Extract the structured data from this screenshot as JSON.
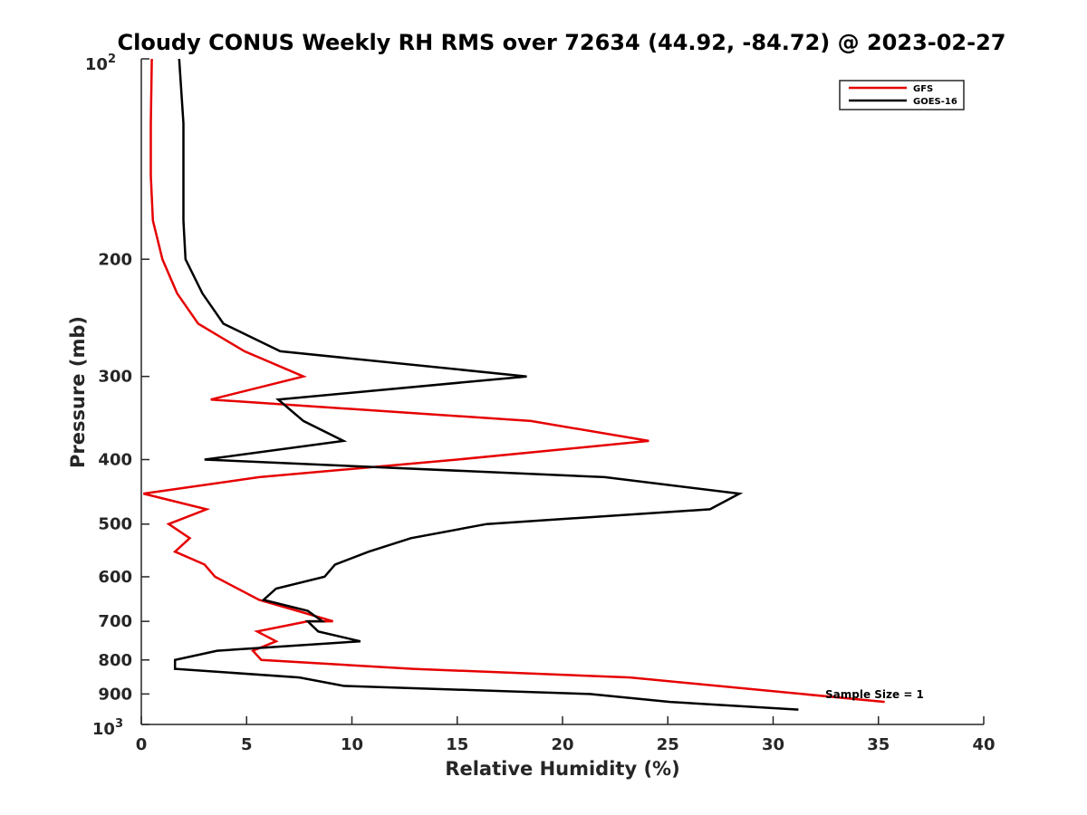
{
  "chart_data": {
    "type": "line",
    "title": "Cloudy CONUS Weekly RH RMS over 72634 (44.92, -84.72) @ 2023-02-27",
    "xlabel": "Relative Humidity (%)",
    "ylabel": "Pressure (mb)",
    "xlim": [
      0,
      40
    ],
    "ylim": [
      100,
      1000
    ],
    "y_scale": "log",
    "y_reversed": true,
    "x_ticks": [
      0,
      5,
      10,
      15,
      20,
      25,
      30,
      35,
      40
    ],
    "x_tick_labels": [
      "0",
      "5",
      "10",
      "15",
      "20",
      "25",
      "30",
      "35",
      "40"
    ],
    "y_ticks": [
      200,
      300,
      400,
      500,
      600,
      700,
      800,
      900
    ],
    "y_tick_labels": [
      "200",
      "300",
      "400",
      "500",
      "600",
      "700",
      "800",
      "900"
    ],
    "y_top_label": {
      "base": "10",
      "exponent": "2"
    },
    "y_bottom_label": {
      "base": "10",
      "exponent": "3"
    },
    "grid": false,
    "legend_position": "top-right",
    "annotation": "Sample Size = 1",
    "series": [
      {
        "name": "GFS",
        "color": "#e60000",
        "points": [
          [
            0.5,
            100
          ],
          [
            0.45,
            125
          ],
          [
            0.45,
            150
          ],
          [
            0.55,
            175
          ],
          [
            1.0,
            200
          ],
          [
            1.7,
            225
          ],
          [
            2.7,
            250
          ],
          [
            4.9,
            275
          ],
          [
            7.7,
            300
          ],
          [
            3.3,
            325
          ],
          [
            18.5,
            350
          ],
          [
            24.1,
            375
          ],
          [
            15.0,
            400
          ],
          [
            5.6,
            425
          ],
          [
            0.1,
            450
          ],
          [
            3.1,
            475
          ],
          [
            1.3,
            500
          ],
          [
            2.3,
            525
          ],
          [
            1.6,
            550
          ],
          [
            3.0,
            575
          ],
          [
            3.5,
            600
          ],
          [
            5.6,
            650
          ],
          [
            7.4,
            675
          ],
          [
            9.1,
            700
          ],
          [
            7.9,
            700
          ],
          [
            5.5,
            725
          ],
          [
            6.4,
            750
          ],
          [
            5.3,
            775
          ],
          [
            5.7,
            800
          ],
          [
            12.9,
            825
          ],
          [
            23.2,
            850
          ],
          [
            35.3,
            925
          ]
        ]
      },
      {
        "name": "GOES-16",
        "color": "#000000",
        "points": [
          [
            1.8,
            100
          ],
          [
            2.0,
            125
          ],
          [
            2.0,
            150
          ],
          [
            2.0,
            175
          ],
          [
            2.1,
            200
          ],
          [
            2.9,
            225
          ],
          [
            3.9,
            250
          ],
          [
            6.6,
            275
          ],
          [
            18.3,
            300
          ],
          [
            6.5,
            325
          ],
          [
            7.7,
            350
          ],
          [
            9.6,
            375
          ],
          [
            3.0,
            400
          ],
          [
            22.0,
            425
          ],
          [
            28.4,
            450
          ],
          [
            27.0,
            475
          ],
          [
            16.4,
            500
          ],
          [
            12.8,
            525
          ],
          [
            10.8,
            550
          ],
          [
            9.2,
            575
          ],
          [
            8.7,
            600
          ],
          [
            6.4,
            625
          ],
          [
            5.8,
            650
          ],
          [
            7.9,
            675
          ],
          [
            8.6,
            700
          ],
          [
            7.9,
            700
          ],
          [
            8.4,
            725
          ],
          [
            10.4,
            750
          ],
          [
            3.6,
            775
          ],
          [
            1.6,
            800
          ],
          [
            1.6,
            825
          ],
          [
            7.5,
            850
          ],
          [
            9.6,
            875
          ],
          [
            21.3,
            900
          ],
          [
            25.1,
            925
          ],
          [
            31.2,
            950
          ]
        ]
      }
    ]
  }
}
